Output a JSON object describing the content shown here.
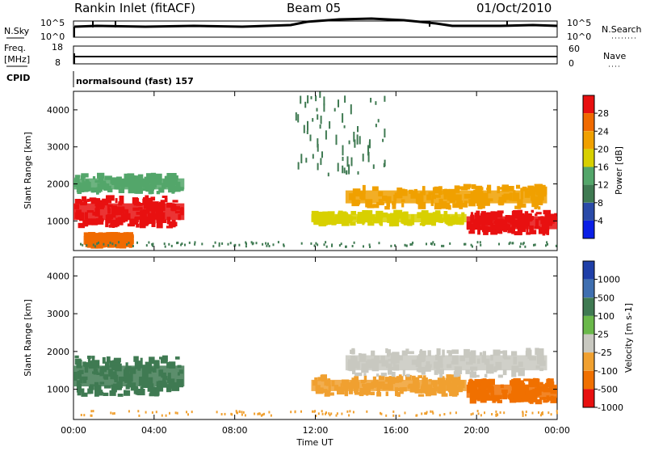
{
  "header": {
    "station": "Rankin Inlet (fitACF)",
    "beam": "Beam 05",
    "date": "01/Oct/2010"
  },
  "strip_labels": {
    "nsky": "N.Sky",
    "nsky_ticks": [
      "10^5",
      "10^0"
    ],
    "nsearch": "N.Search",
    "nsearch_ticks": [
      "10^5",
      "10^0"
    ],
    "freq_line1": "Freq.",
    "freq_line2": "[MHz]",
    "freq_ticks": [
      "18",
      "8"
    ],
    "nave": "Nave",
    "nave_ticks": [
      "60",
      "0"
    ],
    "cpid": "CPID",
    "cpid_text": "normalsound (fast) 157"
  },
  "colors": {
    "power_scale": [
      "#0a1ee6",
      "#2a4aa8",
      "#3f7a52",
      "#53a66a",
      "#d8d000",
      "#f0a000",
      "#f06a00",
      "#e81010"
    ],
    "velocity_scale": [
      "#1f3fa8",
      "#3f6fb0",
      "#3f7a52",
      "#6ab84a",
      "#c8c8c0",
      "#f0a030",
      "#f07000",
      "#e81010"
    ]
  },
  "chart_data": [
    {
      "type": "heatmap",
      "panel": "power",
      "ylabel": "Slant Range [km]",
      "xlabel": "Time UT",
      "x_ticks": [
        "00:00",
        "04:00",
        "08:00",
        "12:00",
        "16:00",
        "20:00",
        "00:00"
      ],
      "y_ticks": [
        "1000",
        "2000",
        "3000",
        "4000"
      ],
      "ylim": [
        200,
        4500
      ],
      "xlim_hours": [
        0,
        24
      ],
      "colorbar_label": "Power [dB]",
      "colorbar_ticks": [
        "4",
        "8",
        "12",
        "16",
        "20",
        "24",
        "28"
      ],
      "features": [
        {
          "t0": 0.0,
          "t1": 5.5,
          "r0": 800,
          "r1": 1700,
          "level": "28"
        },
        {
          "t0": 0.0,
          "t1": 5.5,
          "r0": 1700,
          "r1": 2300,
          "level": "12"
        },
        {
          "t0": 0.5,
          "t1": 3.0,
          "r0": 250,
          "r1": 700,
          "level": "24"
        },
        {
          "t0": 11.8,
          "t1": 19.5,
          "r0": 850,
          "r1": 1300,
          "level": "16"
        },
        {
          "t0": 13.5,
          "t1": 23.5,
          "r0": 1300,
          "r1": 2000,
          "level": "20"
        },
        {
          "t0": 19.5,
          "t1": 24.0,
          "r0": 600,
          "r1": 1300,
          "level": "28"
        },
        {
          "t0": 11.0,
          "t1": 15.5,
          "r0": 2200,
          "r1": 4500,
          "level": "8"
        }
      ]
    },
    {
      "type": "heatmap",
      "panel": "velocity",
      "ylabel": "Slant Range [km]",
      "xlabel": "Time UT",
      "x_ticks": [
        "00:00",
        "04:00",
        "08:00",
        "12:00",
        "16:00",
        "20:00",
        "00:00"
      ],
      "y_ticks": [
        "1000",
        "2000",
        "3000",
        "4000"
      ],
      "ylim": [
        200,
        4500
      ],
      "xlim_hours": [
        0,
        24
      ],
      "colorbar_label": "Velocity [m s-1]",
      "colorbar_ticks": [
        "1000",
        "500",
        "100",
        "25",
        "-25",
        "-100",
        "-500",
        "-1000"
      ],
      "features": [
        {
          "t0": 0.0,
          "t1": 5.5,
          "r0": 800,
          "r1": 1900,
          "level": "100"
        },
        {
          "t0": 11.8,
          "t1": 19.5,
          "r0": 800,
          "r1": 1400,
          "level": "-100"
        },
        {
          "t0": 13.5,
          "t1": 23.5,
          "r0": 1300,
          "r1": 2100,
          "level": "-25"
        },
        {
          "t0": 19.5,
          "t1": 24.0,
          "r0": 600,
          "r1": 1300,
          "level": "-500"
        }
      ]
    }
  ]
}
